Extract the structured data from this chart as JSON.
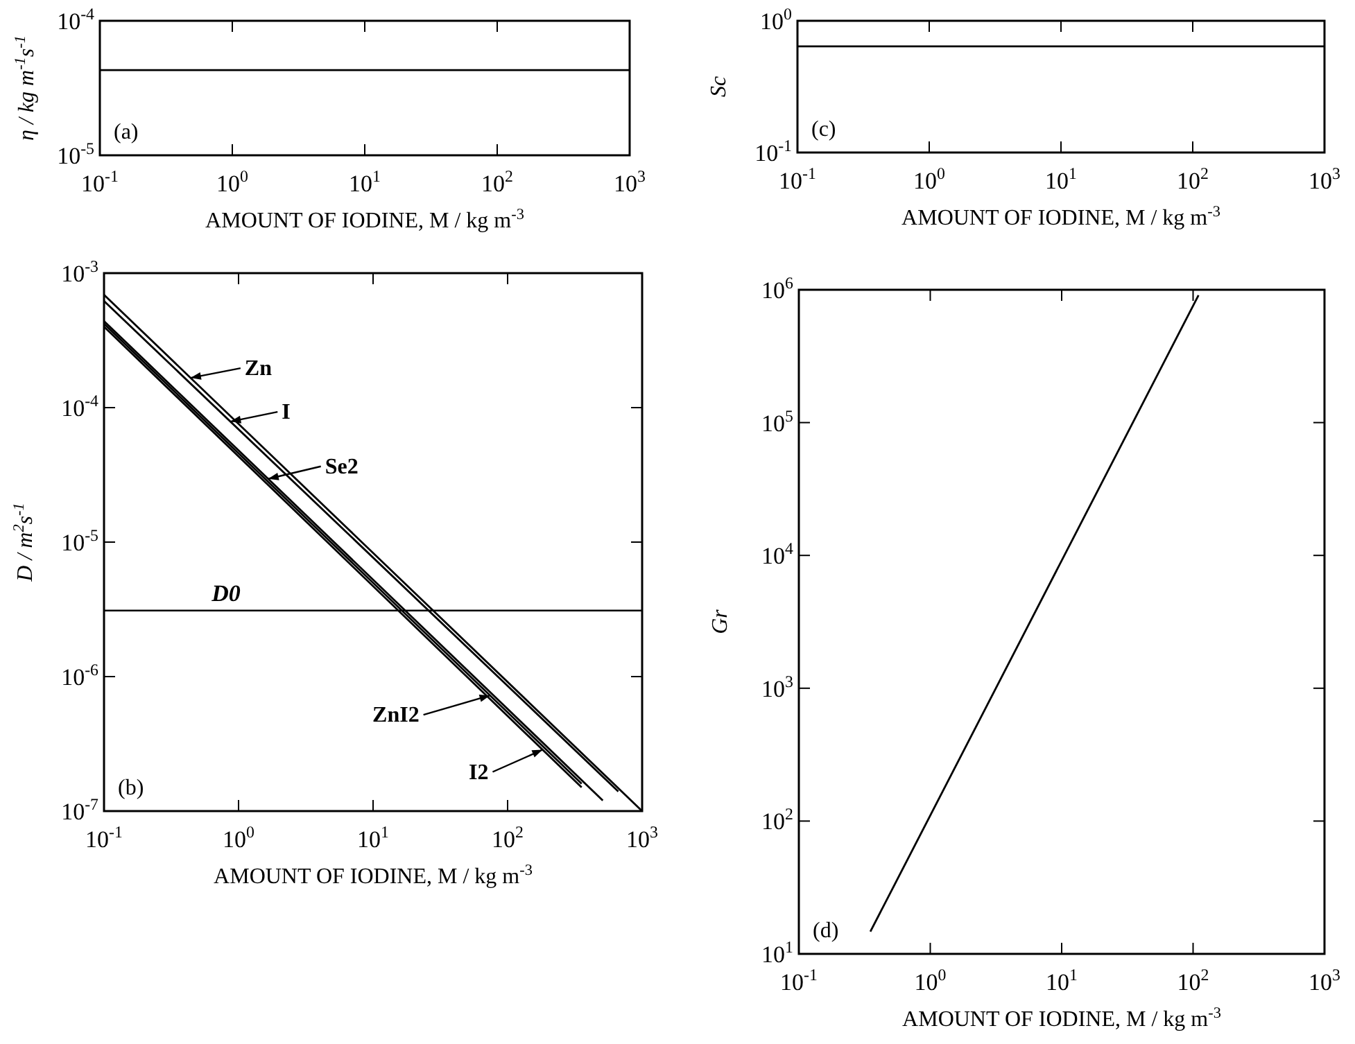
{
  "chart_data": [
    {
      "type": "line",
      "xlabel": "AMOUNT OF IODINE, M  / kg m$^{-3}$",
      "ylabel": "η / kg m$^{-1}$s$^{-1}$",
      "log": "xy",
      "xlim": [
        0.1,
        1000
      ],
      "ylim": [
        1e-05,
        0.0001
      ],
      "xticks": [
        {
          "value": 0.1,
          "label": "10$^{-1}$"
        },
        {
          "value": 1,
          "label": "10$^{0}$"
        },
        {
          "value": 10,
          "label": "10$^{1}$"
        },
        {
          "value": 100,
          "label": "10$^{2}$"
        },
        {
          "value": 1000,
          "label": "10$^{3}$"
        }
      ],
      "yticks": [
        {
          "value": 1e-05,
          "label": "10$^{-5}$"
        },
        {
          "value": 0.0001,
          "label": "10$^{-4}$"
        }
      ],
      "series": [
        {
          "color": "#000000",
          "x": [
            0.1,
            1000
          ],
          "values": [
            4.3e-05,
            4.3e-05
          ]
        }
      ],
      "annotations": [
        "(a)"
      ]
    },
    {
      "type": "line",
      "xlabel": "AMOUNT OF IODINE, M  / kg m$^{-3}$",
      "ylabel": "Sc",
      "log": "xy",
      "xlim": [
        0.1,
        1000
      ],
      "ylim": [
        0.1,
        1
      ],
      "xticks": [
        {
          "value": 0.1,
          "label": "10$^{-1}$"
        },
        {
          "value": 1,
          "label": "10$^{0}$"
        },
        {
          "value": 10,
          "label": "10$^{1}$"
        },
        {
          "value": 100,
          "label": "10$^{2}$"
        },
        {
          "value": 1000,
          "label": "10$^{3}$"
        }
      ],
      "yticks": [
        {
          "value": 0.1,
          "label": "10$^{-1}$"
        },
        {
          "value": 1,
          "label": "10$^{0}$"
        }
      ],
      "series": [
        {
          "color": "#000000",
          "x": [
            0.1,
            1000
          ],
          "values": [
            0.64,
            0.64
          ]
        }
      ],
      "annotations": [
        "(c)"
      ]
    },
    {
      "type": "line",
      "xlabel": "AMOUNT OF IODINE, M  / kg m$^{-3}$",
      "ylabel": "D  / m$^{2}$s$^{-1}$",
      "log": "xy",
      "xlim": [
        0.1,
        1000
      ],
      "ylim": [
        1e-07,
        0.001
      ],
      "xticks": [
        {
          "value": 0.1,
          "label": "10$^{-1}$"
        },
        {
          "value": 1,
          "label": "10$^{0}$"
        },
        {
          "value": 10,
          "label": "10$^{1}$"
        },
        {
          "value": 100,
          "label": "10$^{2}$"
        },
        {
          "value": 1000,
          "label": "10$^{3}$"
        }
      ],
      "yticks": [
        {
          "value": 1e-07,
          "label": "10$^{-7}$"
        },
        {
          "value": 1e-06,
          "label": "10$^{-6}$"
        },
        {
          "value": 1e-05,
          "label": "10$^{-5}$"
        },
        {
          "value": 0.0001,
          "label": "10$^{-4}$"
        },
        {
          "value": 0.001,
          "label": "10$^{-3}$"
        }
      ],
      "series": [
        {
          "name": "Zn",
          "color": "#000000",
          "x": [
            0.1,
            1000
          ],
          "values": [
            0.00069,
            1e-07
          ]
        },
        {
          "name": "I",
          "color": "#000000",
          "x": [
            0.1,
            665
          ],
          "values": [
            0.00062,
            1.4e-07
          ]
        },
        {
          "name": "Se2",
          "color": "#000000",
          "x": [
            0.1,
            510
          ],
          "values": [
            0.00044,
            1.2e-07
          ]
        },
        {
          "name": "ZnI2",
          "color": "#000000",
          "x": [
            0.1,
            355
          ],
          "values": [
            0.00042,
            1.6e-07
          ]
        },
        {
          "name": "I2",
          "color": "#000000",
          "x": [
            0.1,
            355
          ],
          "values": [
            0.0004,
            1.5e-07
          ]
        }
      ],
      "ref_lines": [
        {
          "axis": "y",
          "value": 3.1e-06,
          "label": "D0",
          "color": "#000000"
        }
      ],
      "legend": "top left",
      "annotations": [
        "(b)"
      ]
    },
    {
      "type": "line",
      "xlabel": "AMOUNT OF IODINE, M  / kg m$^{-3}$",
      "ylabel": "Gr",
      "log": "xy",
      "xlim": [
        0.1,
        1000
      ],
      "ylim": [
        10,
        1000000
      ],
      "xticks": [
        {
          "value": 0.1,
          "label": "10$^{-1}$"
        },
        {
          "value": 1,
          "label": "10$^{0}$"
        },
        {
          "value": 10,
          "label": "10$^{1}$"
        },
        {
          "value": 100,
          "label": "10$^{2}$"
        },
        {
          "value": 1000,
          "label": "10$^{3}$"
        }
      ],
      "yticks": [
        {
          "value": 10,
          "label": "10$^{1}$"
        },
        {
          "value": 100,
          "label": "10$^{2}$"
        },
        {
          "value": 1000,
          "label": "10$^{3}$"
        },
        {
          "value": 10000,
          "label": "10$^{4}$"
        },
        {
          "value": 100000,
          "label": "10$^{5}$"
        },
        {
          "value": 1000000,
          "label": "10$^{6}$"
        }
      ],
      "series": [
        {
          "color": "#000000",
          "x": [
            0.35,
            110
          ],
          "values": [
            14.7,
            910000
          ]
        }
      ],
      "annotations": [
        "(d)"
      ]
    }
  ]
}
